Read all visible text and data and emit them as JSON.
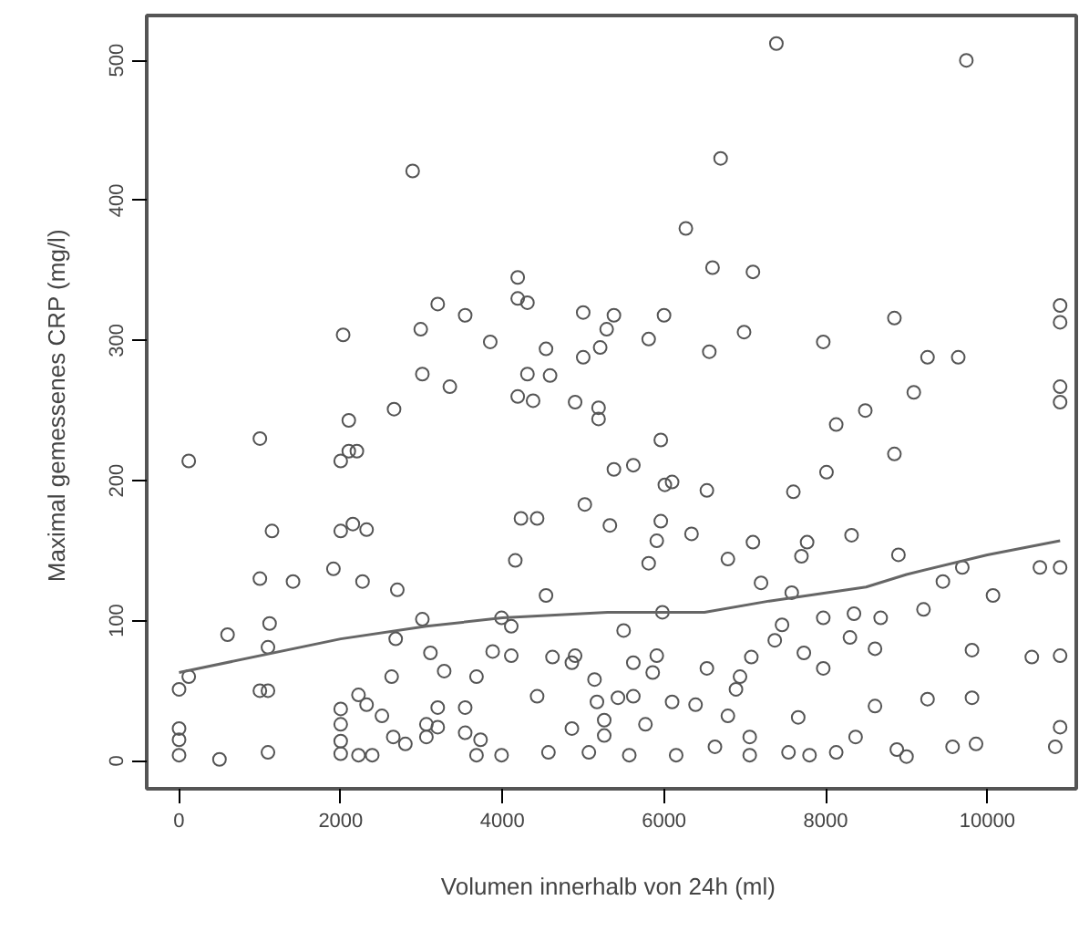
{
  "chart_data": {
    "type": "scatter",
    "xlabel": "Volumen  innerhalb von 24h (ml)",
    "ylabel": "Maximal gemessenes  CRP (mg/l)",
    "xlim": [
      -400,
      11100
    ],
    "ylim": [
      -20,
      532
    ],
    "xticks": [
      0,
      2000,
      4000,
      6000,
      8000,
      10000
    ],
    "yticks": [
      0,
      100,
      200,
      300,
      400,
      500
    ],
    "grid": false,
    "series": [
      {
        "marker": "circle",
        "color": "#555555",
        "x": [
          9740,
          7390,
          2890,
          6700,
          6270,
          6600,
          7100,
          5000,
          5380,
          6000,
          5290,
          5810,
          6990,
          5210,
          6560,
          7970,
          8850,
          9260,
          9640,
          10900,
          10900,
          10900,
          10900,
          4190,
          4190,
          4310,
          3200,
          3540,
          3850,
          2030,
          2990,
          4540,
          5000,
          4590,
          4310,
          3010,
          3350,
          4190,
          4380,
          120,
          1000,
          2100,
          2100,
          2200,
          1150,
          1000,
          1410,
          1120,
          600,
          1100,
          120,
          0,
          1000,
          1100,
          0,
          0,
          0,
          500,
          1100,
          2000,
          2150,
          2000,
          2320,
          2660,
          1910,
          2270,
          2700,
          3010,
          2680,
          3110,
          2630,
          2000,
          2220,
          2320,
          2510,
          2000,
          2000,
          2000,
          2220,
          2390,
          2650,
          2800,
          3060,
          3060,
          3200,
          3200,
          3280,
          3540,
          3540,
          3680,
          3880,
          3730,
          3680,
          4110,
          4110,
          3990,
          4160,
          4230,
          4430,
          4540,
          4620,
          4430,
          4900,
          4860,
          4570,
          3990,
          5070,
          5260,
          5260,
          5430,
          5620,
          5770,
          5170,
          4860,
          5140,
          5500,
          5620,
          5860,
          5980,
          5810,
          5910,
          6100,
          5960,
          5190,
          4900,
          5190,
          5020,
          5330,
          5380,
          5620,
          5960,
          6010,
          6340,
          6530,
          6790,
          7100,
          7700,
          8010,
          8130,
          8850,
          8490,
          9090,
          8320,
          8900,
          7770,
          7600,
          9690,
          10070,
          10650,
          10900,
          9450,
          9210,
          8680,
          8350,
          8300,
          8610,
          7970,
          7970,
          9810,
          10550,
          10900,
          9810,
          9260,
          8610,
          8370,
          9570,
          9860,
          10900,
          10840,
          7660,
          7060,
          6630,
          6150,
          5570,
          6790,
          7080,
          6890,
          6530,
          7540,
          7800,
          8130,
          8880,
          9000,
          7060,
          6390,
          6940,
          6100,
          5910,
          7370,
          7460,
          7730,
          7200,
          7580
        ],
        "values": [
          500,
          512,
          421,
          430,
          380,
          352,
          349,
          320,
          318,
          318,
          308,
          301,
          306,
          295,
          292,
          299,
          316,
          288,
          288,
          325,
          313,
          267,
          256,
          345,
          330,
          327,
          326,
          318,
          299,
          304,
          308,
          294,
          288,
          275,
          276,
          276,
          267,
          260,
          257,
          214,
          230,
          243,
          221,
          221,
          164,
          130,
          128,
          98,
          90,
          81,
          60,
          51,
          50,
          50,
          23,
          15,
          4,
          1,
          6,
          164,
          169,
          214,
          165,
          251,
          137,
          128,
          122,
          101,
          87,
          77,
          60,
          37,
          47,
          40,
          32,
          26,
          14,
          5,
          4,
          4,
          17,
          12,
          26,
          17,
          38,
          24,
          64,
          38,
          20,
          60,
          78,
          15,
          4,
          75,
          96,
          102,
          143,
          173,
          173,
          118,
          74,
          46,
          75,
          23,
          6,
          4,
          6,
          18,
          29,
          45,
          46,
          26,
          42,
          70,
          58,
          93,
          70,
          63,
          106,
          141,
          157,
          199,
          229,
          252,
          256,
          244,
          183,
          168,
          208,
          211,
          171,
          197,
          162,
          193,
          144,
          156,
          146,
          206,
          240,
          219,
          250,
          263,
          161,
          147,
          156,
          192,
          138,
          118,
          138,
          138,
          128,
          108,
          102,
          105,
          88,
          80,
          102,
          66,
          79,
          74,
          75,
          45,
          44,
          39,
          17,
          10,
          12,
          24,
          10,
          31,
          17,
          10,
          4,
          4,
          32,
          74,
          51,
          66,
          6,
          4,
          6,
          8,
          3,
          4,
          40,
          60,
          42,
          75,
          86,
          97,
          77,
          127,
          120
        ]
      },
      {
        "type": "line",
        "marker": "none",
        "color": "#666666",
        "x": [
          0,
          2000,
          3060,
          4000,
          5300,
          6500,
          7300,
          8500,
          9000,
          10000,
          10900
        ],
        "values": [
          63,
          87,
          96,
          102,
          106,
          106,
          114,
          124,
          133,
          147,
          157
        ]
      }
    ]
  }
}
